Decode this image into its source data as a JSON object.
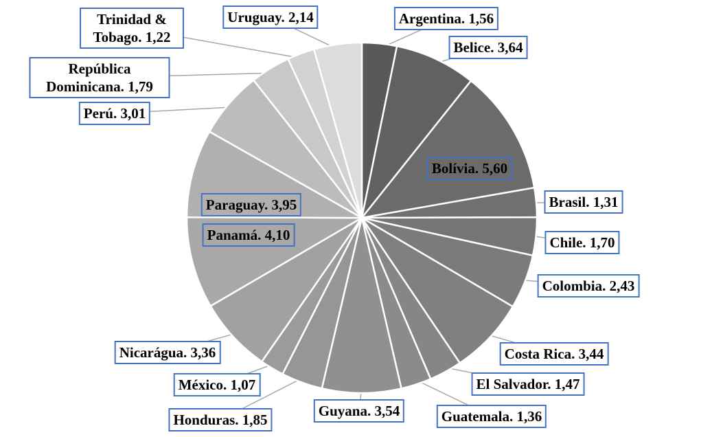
{
  "chart_data": {
    "type": "pie",
    "categories": [
      "Argentina",
      "Belice",
      "Bolívia",
      "Brasil",
      "Chile",
      "Colombia",
      "Costa Rica",
      "El Salvador",
      "Guatemala",
      "Guyana",
      "Honduras",
      "México",
      "Nicarágua",
      "Panamá",
      "Paraguay",
      "Perú",
      "República Dominicana",
      "Trinidad & Tobago",
      "Uruguay"
    ],
    "values": [
      1.56,
      3.64,
      5.6,
      1.31,
      1.7,
      2.43,
      3.44,
      1.47,
      1.36,
      3.54,
      1.85,
      1.07,
      3.36,
      4.1,
      3.95,
      3.01,
      1.79,
      1.22,
      2.14
    ],
    "value_labels": [
      "Argentina. 1,56",
      "Belice. 3,64",
      "Bolívia. 5,60",
      "Brasil. 1,31",
      "Chile. 1,70",
      "Colombia. 2,43",
      "Costa Rica. 3,44",
      "El Salvador. 1,47",
      "Guatemala. 1,36",
      "Guyana. 3,54",
      "Honduras. 1,85",
      "México. 1,07",
      "Nicarágua. 3,36",
      "Panamá. 4,10",
      "Paraguay. 3,95",
      "Perú. 3,01",
      "República Dominicana. 1,79",
      "Trinidad & Tobago. 1,22",
      "Uruguay. 2,14"
    ],
    "colors": [
      "#595959",
      "#616161",
      "#6b6b6b",
      "#707070",
      "#757575",
      "#7b7b7b",
      "#808080",
      "#868686",
      "#8b8b8b",
      "#909090",
      "#969696",
      "#9b9b9b",
      "#a1a1a1",
      "#a8a8a8",
      "#b0b0b0",
      "#bcbcbc",
      "#c8c8c8",
      "#d2d2d2",
      "#dcdcdc"
    ]
  }
}
